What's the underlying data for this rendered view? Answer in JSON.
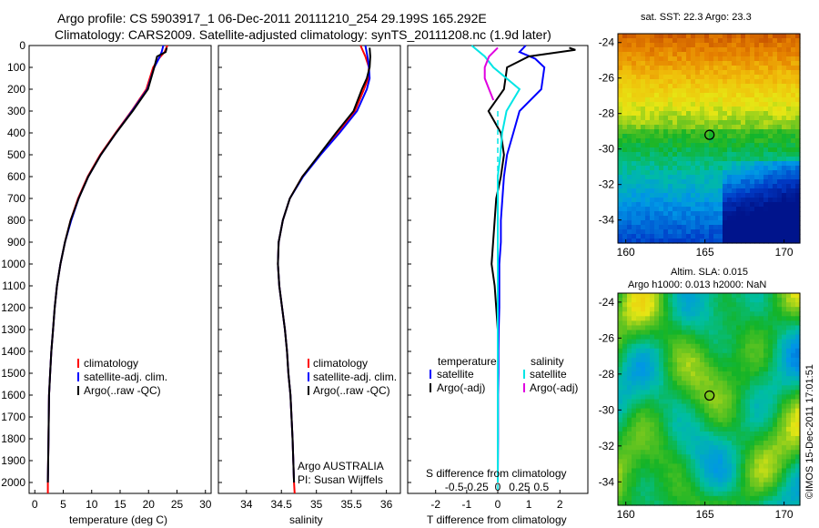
{
  "header": {
    "line1": "Argo profile: CS 5903917_1 06-Dec-2011 20111210_254 29.199S 165.292E",
    "line2": "Climatology: CARS2009. Satellite-adjusted climatology: synTS_20111208.nc (1.9d later)"
  },
  "colors": {
    "climatology": "#ff0000",
    "satellite": "#0000ff",
    "argo": "#000000",
    "sal_satellite": "#00e5e5",
    "sal_argo": "#e000e0"
  },
  "chart_data": [
    {
      "type": "line",
      "id": "temperature-profile",
      "xlabel": "temperature (deg C)",
      "ylabel": "",
      "xlim": [
        -1,
        31
      ],
      "ylim": [
        2050,
        0
      ],
      "xticks": [
        0,
        5,
        10,
        15,
        20,
        25,
        30
      ],
      "yticks": [
        0,
        100,
        200,
        300,
        400,
        500,
        600,
        700,
        800,
        900,
        1000,
        1100,
        1200,
        1300,
        1400,
        1500,
        1600,
        1700,
        1800,
        1900,
        2000
      ],
      "legend": [
        "climatology",
        "satellite-adj. clim.",
        "Argo(..raw -QC)"
      ],
      "series": [
        {
          "name": "climatology",
          "color_key": "climatology",
          "x": [
            23.3,
            22.8,
            21.8,
            20.8,
            19.6,
            17.0,
            14.2,
            11.5,
            9.3,
            7.6,
            6.3,
            5.3,
            4.5,
            3.9,
            3.5,
            3.2,
            2.9,
            2.7,
            2.5,
            2.4,
            2.3,
            2.3
          ],
          "y": [
            0,
            30,
            60,
            100,
            200,
            300,
            400,
            500,
            600,
            700,
            800,
            900,
            1000,
            1100,
            1200,
            1300,
            1400,
            1500,
            1600,
            1800,
            2000,
            2050
          ]
        },
        {
          "name": "satellite-adj. clim.",
          "color_key": "satellite",
          "x": [
            22.6,
            22.3,
            21.8,
            21.0,
            19.8,
            17.1,
            14.3,
            11.6,
            9.4,
            7.7,
            6.4,
            5.3,
            4.5,
            3.9,
            3.5,
            3.2,
            2.9,
            2.7,
            2.5,
            2.4,
            2.3
          ],
          "y": [
            0,
            30,
            60,
            100,
            200,
            300,
            400,
            500,
            600,
            700,
            800,
            900,
            1000,
            1100,
            1200,
            1300,
            1400,
            1500,
            1600,
            1800,
            2000
          ]
        },
        {
          "name": "Argo(..raw -QC)",
          "color_key": "argo",
          "x": [
            23.2,
            23.0,
            21.5,
            21.0,
            19.9,
            17.2,
            14.3,
            11.6,
            9.4,
            7.7,
            6.3,
            5.3,
            4.5,
            3.9,
            3.5,
            3.2,
            2.9,
            2.7,
            2.5,
            2.4,
            2.3
          ],
          "y": [
            10,
            30,
            50,
            100,
            200,
            300,
            400,
            500,
            600,
            700,
            800,
            900,
            1000,
            1100,
            1200,
            1300,
            1400,
            1500,
            1600,
            1800,
            2000
          ]
        }
      ]
    },
    {
      "type": "line",
      "id": "salinity-profile",
      "xlabel": "salinity",
      "ylabel": "",
      "xlim": [
        33.6,
        36.2
      ],
      "ylim": [
        2050,
        0
      ],
      "xticks": [
        34,
        34.5,
        35,
        35.5,
        36
      ],
      "legend": [
        "climatology",
        "satellite-adj. clim.",
        "Argo(..raw -QC)"
      ],
      "annotation": [
        "Argo AUSTRALIA",
        "PI: Susan Wijffels"
      ],
      "series": [
        {
          "name": "climatology",
          "color_key": "climatology",
          "x": [
            35.63,
            35.7,
            35.75,
            35.74,
            35.68,
            35.55,
            35.3,
            35.05,
            34.8,
            34.62,
            34.52,
            34.46,
            34.45,
            34.47,
            34.51,
            34.55,
            34.58,
            34.6,
            34.63,
            34.66,
            34.68,
            34.69
          ],
          "y": [
            0,
            50,
            100,
            150,
            200,
            300,
            400,
            500,
            600,
            700,
            800,
            900,
            1000,
            1100,
            1200,
            1300,
            1400,
            1500,
            1600,
            1800,
            2000,
            2050
          ]
        },
        {
          "name": "satellite-adj. clim.",
          "color_key": "satellite",
          "x": [
            35.7,
            35.73,
            35.75,
            35.76,
            35.72,
            35.58,
            35.33,
            35.06,
            34.81,
            34.62,
            34.52,
            34.46,
            34.45,
            34.47,
            34.51,
            34.55,
            34.58,
            34.6,
            34.63,
            34.66,
            34.68
          ],
          "y": [
            0,
            50,
            100,
            150,
            200,
            300,
            400,
            500,
            600,
            700,
            800,
            900,
            1000,
            1100,
            1200,
            1300,
            1400,
            1500,
            1600,
            1800,
            2000
          ]
        },
        {
          "name": "Argo(..raw -QC)",
          "color_key": "argo",
          "x": [
            35.76,
            35.77,
            35.76,
            35.72,
            35.65,
            35.53,
            35.28,
            35.04,
            34.8,
            34.62,
            34.52,
            34.46,
            34.45,
            34.47,
            34.51,
            34.55,
            34.58,
            34.6,
            34.63,
            34.66,
            34.68
          ],
          "y": [
            10,
            50,
            100,
            150,
            200,
            300,
            400,
            500,
            600,
            700,
            800,
            900,
            1000,
            1100,
            1200,
            1300,
            1400,
            1500,
            1600,
            1800,
            2000
          ]
        }
      ]
    },
    {
      "type": "line",
      "id": "difference-profile",
      "xlabel": "T difference from climatology",
      "xlabel_top": "S difference from climatology",
      "xlim": [
        -2.9,
        2.9
      ],
      "ylim": [
        2050,
        0
      ],
      "xticks_T": [
        -2,
        -1,
        0,
        1,
        2
      ],
      "xticks_S": [
        "-0.5",
        "-0.25",
        "0",
        "0.25",
        "0.5"
      ],
      "legend_temperature_title": "temperature",
      "legend_salinity_title": "salinity",
      "legend_temperature": [
        "satellite",
        "Argo(-adj)"
      ],
      "legend_salinity": [
        "satellite",
        "Argo(-adj)"
      ],
      "series": [
        {
          "name": "T satellite",
          "color_key": "satellite",
          "x": [
            0.9,
            0.7,
            1.2,
            1.5,
            1.4,
            0.7,
            0.5,
            0.3,
            0.2,
            0.15,
            0.1,
            0.1,
            0.05,
            0.05,
            0.05,
            0.03,
            0.02,
            0.02,
            0.01,
            0.01,
            0.0
          ],
          "y": [
            0,
            30,
            60,
            100,
            200,
            300,
            400,
            500,
            600,
            700,
            800,
            900,
            1000,
            1100,
            1200,
            1300,
            1400,
            1500,
            1600,
            1800,
            2000
          ]
        },
        {
          "name": "T Argo(-adj)",
          "color_key": "argo",
          "x": [
            2.3,
            2.5,
            1.0,
            0.3,
            0.2,
            -0.3,
            0.1,
            0.2,
            0.1,
            -0.05,
            -0.1,
            -0.15,
            -0.2,
            -0.1,
            -0.05,
            0.0,
            0.0,
            0.0,
            0.0,
            0.0,
            0.0
          ],
          "y": [
            10,
            20,
            50,
            100,
            200,
            300,
            400,
            500,
            600,
            700,
            800,
            900,
            1000,
            1100,
            1200,
            1300,
            1400,
            1500,
            1600,
            1800,
            2000
          ]
        },
        {
          "name": "S satellite",
          "color_key": "sal_satellite",
          "x": [
            -0.3,
            -0.15,
            -0.05,
            0.1,
            0.25,
            0.1,
            0.05,
            0.03,
            0.0,
            0.0,
            0.0,
            0.0,
            0.0,
            0.0,
            0.0,
            0.0,
            0.0,
            0.0,
            0.0,
            0.0
          ],
          "y": [
            0,
            50,
            100,
            150,
            200,
            300,
            400,
            500,
            600,
            700,
            800,
            900,
            1000,
            1100,
            1200,
            1400,
            1600,
            1700,
            1800,
            2000
          ]
        },
        {
          "name": "S Argo(-adj)",
          "color_key": "sal_argo",
          "x": [
            0.0,
            -0.1,
            -0.15,
            -0.15,
            -0.1,
            -0.05
          ],
          "y": [
            10,
            50,
            100,
            150,
            200,
            250
          ]
        }
      ]
    },
    {
      "type": "heatmap",
      "id": "sst-map",
      "title": "sat. SST: 22.3 Argo: 23.3",
      "xticks": [
        160,
        165,
        170
      ],
      "yticks": [
        -24,
        -26,
        -28,
        -30,
        -32,
        -34
      ],
      "xlim": [
        159.5,
        171
      ],
      "ylim": [
        -35.3,
        -23.5
      ],
      "marker": {
        "lon": 165.292,
        "lat": -29.199
      }
    },
    {
      "type": "heatmap",
      "id": "sla-map",
      "title": "Altim. SLA: 0.015",
      "subtitle": "Argo h1000: 0.013 h2000: NaN",
      "xticks": [
        160,
        165,
        170
      ],
      "yticks": [
        -24,
        -26,
        -28,
        -30,
        -32,
        -34
      ],
      "xlim": [
        159.5,
        171
      ],
      "ylim": [
        -35.3,
        -23.5
      ],
      "marker": {
        "lon": 165.292,
        "lat": -29.199
      }
    }
  ],
  "footer": {
    "credit": "©IMOS 15-Dec-2011 17:01:51"
  }
}
